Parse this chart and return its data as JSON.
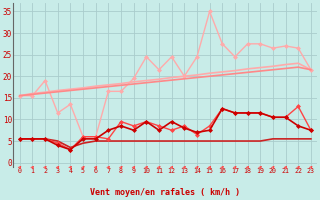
{
  "bg_color": "#c8ece8",
  "grid_color": "#aacccc",
  "xlabel": "Vent moyen/en rafales ( km/h )",
  "x_ticks": [
    0,
    1,
    2,
    3,
    4,
    5,
    6,
    7,
    8,
    9,
    10,
    11,
    12,
    13,
    14,
    15,
    16,
    17,
    18,
    19,
    20,
    21,
    22,
    23
  ],
  "ylim": [
    -1,
    37
  ],
  "y_ticks": [
    0,
    5,
    10,
    15,
    20,
    25,
    30,
    35
  ],
  "lines": [
    {
      "color": "#ffaaaa",
      "lw": 1.2,
      "marker": null,
      "ms": 0,
      "data": [
        15.5,
        16.0,
        16.3,
        16.7,
        17.0,
        17.3,
        17.7,
        18.0,
        18.3,
        18.7,
        19.0,
        19.3,
        19.7,
        20.0,
        20.3,
        20.7,
        21.0,
        21.3,
        21.7,
        22.0,
        22.3,
        22.7,
        23.0,
        21.5
      ]
    },
    {
      "color": "#ffaaaa",
      "lw": 1.0,
      "marker": "D",
      "ms": 2.0,
      "data": [
        15.5,
        15.5,
        19.0,
        11.5,
        13.5,
        6.0,
        6.0,
        16.5,
        16.5,
        19.5,
        24.5,
        21.5,
        24.5,
        20.0,
        24.5,
        35.0,
        27.5,
        24.5,
        27.5,
        27.5,
        26.5,
        27.0,
        26.5,
        21.5
      ]
    },
    {
      "color": "#ff8888",
      "lw": 1.2,
      "marker": null,
      "ms": 0,
      "data": [
        15.5,
        15.8,
        16.1,
        16.4,
        16.7,
        17.0,
        17.3,
        17.6,
        17.9,
        18.2,
        18.5,
        18.8,
        19.1,
        19.4,
        19.7,
        20.0,
        20.3,
        20.6,
        20.9,
        21.2,
        21.5,
        21.8,
        22.1,
        21.5
      ]
    },
    {
      "color": "#cc2222",
      "lw": 1.2,
      "marker": null,
      "ms": 0,
      "data": [
        5.5,
        5.5,
        5.5,
        5.0,
        3.5,
        4.5,
        5.0,
        5.0,
        5.0,
        5.0,
        5.0,
        5.0,
        5.0,
        5.0,
        5.0,
        5.0,
        5.0,
        5.0,
        5.0,
        5.0,
        5.5,
        5.5,
        5.5,
        5.5
      ]
    },
    {
      "color": "#ff4444",
      "lw": 1.0,
      "marker": "D",
      "ms": 2.0,
      "data": [
        5.5,
        5.5,
        5.5,
        4.5,
        3.0,
        6.0,
        6.0,
        5.5,
        9.5,
        8.5,
        9.5,
        8.5,
        7.5,
        8.5,
        6.5,
        8.5,
        12.5,
        11.5,
        11.5,
        11.5,
        10.5,
        10.5,
        13.0,
        7.5
      ]
    },
    {
      "color": "#cc0000",
      "lw": 1.2,
      "marker": "D",
      "ms": 2.0,
      "data": [
        5.5,
        5.5,
        5.5,
        4.0,
        3.0,
        5.5,
        5.5,
        7.5,
        8.5,
        7.5,
        9.5,
        7.5,
        9.5,
        8.0,
        7.0,
        7.5,
        12.5,
        11.5,
        11.5,
        11.5,
        10.5,
        10.5,
        8.5,
        7.5
      ]
    }
  ],
  "arrow_color": "#ff4444",
  "tick_color": "#cc0000",
  "label_color": "#cc0000"
}
